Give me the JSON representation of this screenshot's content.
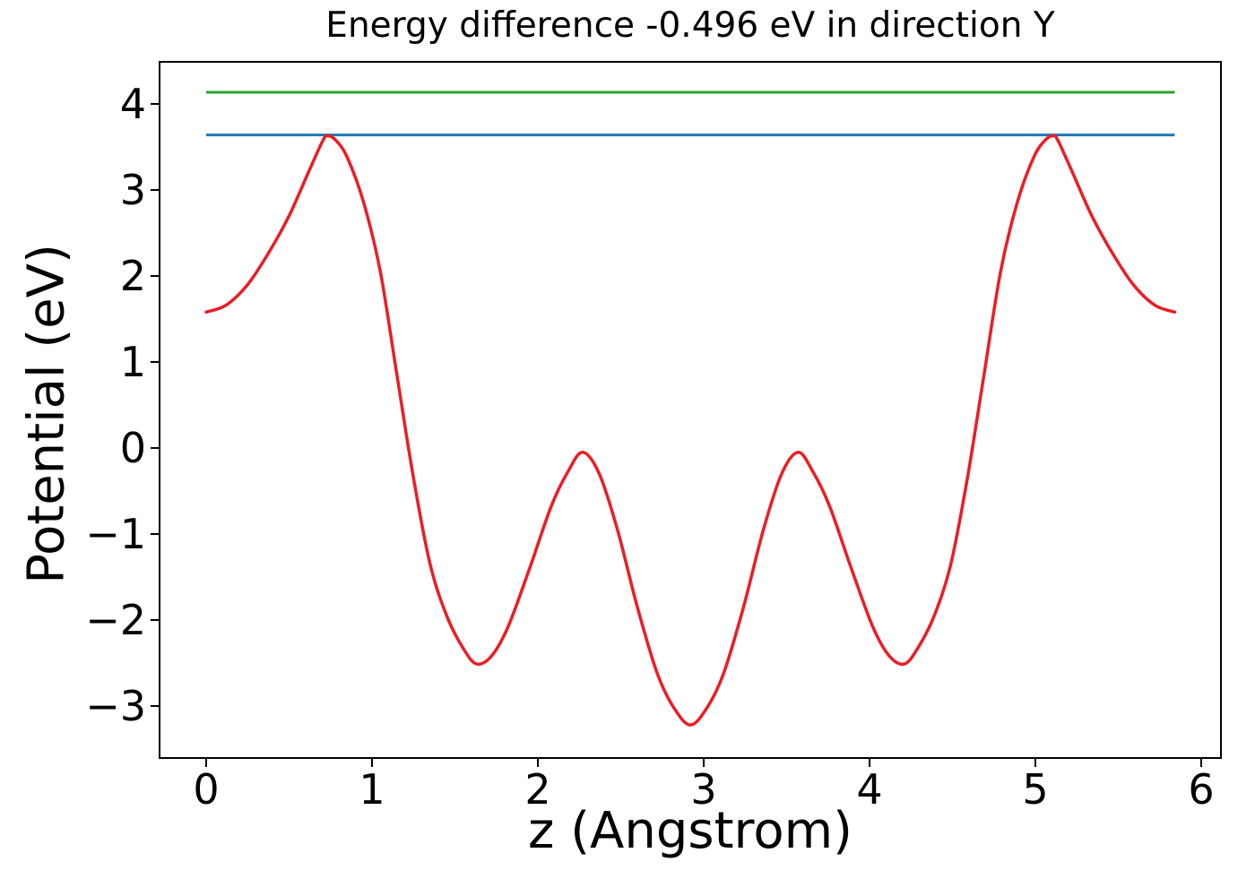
{
  "figure": {
    "title": "Energy difference -0.496 eV in direction Y"
  },
  "axes": {
    "xlabel": "z (Angstrom)",
    "ylabel": "Potential (eV)"
  },
  "chart_data": {
    "type": "line",
    "title": "Energy difference -0.496 eV in direction Y",
    "xlabel": "z (Angstrom)",
    "ylabel": "Potential (eV)",
    "xlim": [
      -0.2865,
      6.1243
    ],
    "ylim": [
      -3.6146,
      4.5
    ],
    "grid": false,
    "legend": false,
    "xticks": {
      "values": [
        0,
        1,
        2,
        3,
        4,
        5,
        6
      ],
      "labels": [
        "0",
        "1",
        "2",
        "3",
        "4",
        "5",
        "6"
      ]
    },
    "yticks": {
      "values": [
        4,
        3,
        2,
        1,
        0,
        -1,
        -2,
        -3
      ],
      "labels": [
        "4",
        "3",
        "2",
        "1",
        "0",
        "−1",
        "−2",
        "−3"
      ]
    },
    "annotations": {
      "energy_difference_eV": -0.496,
      "direction": "Y"
    },
    "series": [
      {
        "name": "potential",
        "kind": "curve",
        "color": "#ed1c24",
        "stroke_width": 3.5,
        "x": [
          0.0,
          0.12,
          0.25,
          0.38,
          0.5,
          0.62,
          0.7,
          0.73,
          0.78,
          0.85,
          0.95,
          1.05,
          1.15,
          1.25,
          1.35,
          1.45,
          1.55,
          1.63,
          1.72,
          1.82,
          1.95,
          2.08,
          2.18,
          2.27,
          2.37,
          2.48,
          2.6,
          2.72,
          2.82,
          2.92,
          3.02,
          3.12,
          3.24,
          3.36,
          3.47,
          3.57,
          3.66,
          3.76,
          3.89,
          4.02,
          4.12,
          4.21,
          4.29,
          4.39,
          4.49,
          4.59,
          4.69,
          4.79,
          4.89,
          4.99,
          5.06,
          5.11,
          5.14,
          5.22,
          5.34,
          5.46,
          5.59,
          5.72,
          5.84
        ],
        "y": [
          1.58,
          1.66,
          1.9,
          2.28,
          2.7,
          3.22,
          3.56,
          3.63,
          3.58,
          3.38,
          2.85,
          2.05,
          0.85,
          -0.35,
          -1.35,
          -1.95,
          -2.33,
          -2.51,
          -2.42,
          -2.08,
          -1.4,
          -0.68,
          -0.28,
          -0.05,
          -0.3,
          -0.95,
          -1.85,
          -2.62,
          -3.02,
          -3.22,
          -3.02,
          -2.62,
          -1.85,
          -0.95,
          -0.3,
          -0.05,
          -0.28,
          -0.68,
          -1.4,
          -2.08,
          -2.42,
          -2.51,
          -2.33,
          -1.95,
          -1.35,
          -0.35,
          0.85,
          2.05,
          2.85,
          3.38,
          3.58,
          3.63,
          3.56,
          3.22,
          2.7,
          2.28,
          1.9,
          1.66,
          1.58
        ]
      },
      {
        "name": "upper-energy-level",
        "kind": "hline",
        "color": "#2ca02c",
        "stroke_width": 3,
        "y": 4.135,
        "x_start": 0,
        "x_end": 5.84
      },
      {
        "name": "lower-energy-level",
        "kind": "hline",
        "color": "#1f77b4",
        "stroke_width": 3,
        "y": 3.639,
        "x_start": 0,
        "x_end": 5.84
      }
    ]
  }
}
